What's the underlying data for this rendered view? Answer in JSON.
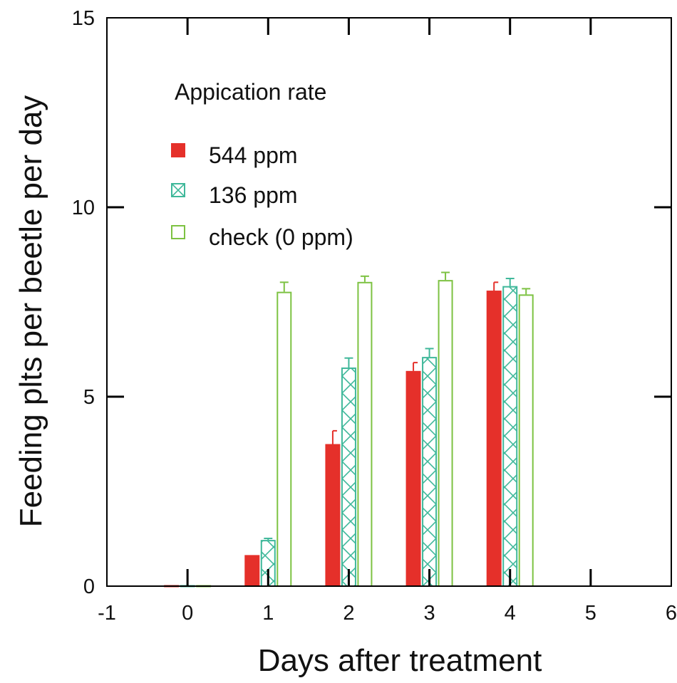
{
  "colors": {
    "s544": "#e5302a",
    "s136": "#3fb89a",
    "check": "#7dc242",
    "axis": "#000000"
  },
  "legend": {
    "title": "Appication rate",
    "items": [
      {
        "label": "544 ppm",
        "series": 0
      },
      {
        "label": "136 ppm",
        "series": 1
      },
      {
        "label": "check (0 ppm)",
        "series": 2
      }
    ]
  },
  "chart_data": {
    "type": "bar",
    "xlabel": "Days after treatment",
    "ylabel": "Feeding plts per beetle per day",
    "xlim": [
      -1,
      6
    ],
    "ylim": [
      0,
      15
    ],
    "x_ticks": [
      -1,
      0,
      1,
      2,
      3,
      4,
      5,
      6
    ],
    "y_ticks": [
      0,
      5,
      10,
      15
    ],
    "legend_position": "top-left",
    "grid": false,
    "x": [
      0,
      1,
      2,
      3,
      4
    ],
    "series": [
      {
        "name": "544 ppm",
        "style": "solid",
        "values": [
          0,
          0.82,
          3.75,
          5.68,
          7.8
        ],
        "errors": [
          0,
          0,
          0.35,
          0.22,
          0.22
        ]
      },
      {
        "name": "136 ppm",
        "style": "crosshatch",
        "values": [
          0,
          1.22,
          5.77,
          6.05,
          7.92
        ],
        "errors": [
          0,
          0.04,
          0.25,
          0.22,
          0.2
        ]
      },
      {
        "name": "check (0 ppm)",
        "style": "open",
        "values": [
          0,
          7.77,
          8.03,
          8.08,
          7.7
        ],
        "errors": [
          0,
          0.25,
          0.15,
          0.2,
          0.15
        ]
      }
    ]
  }
}
